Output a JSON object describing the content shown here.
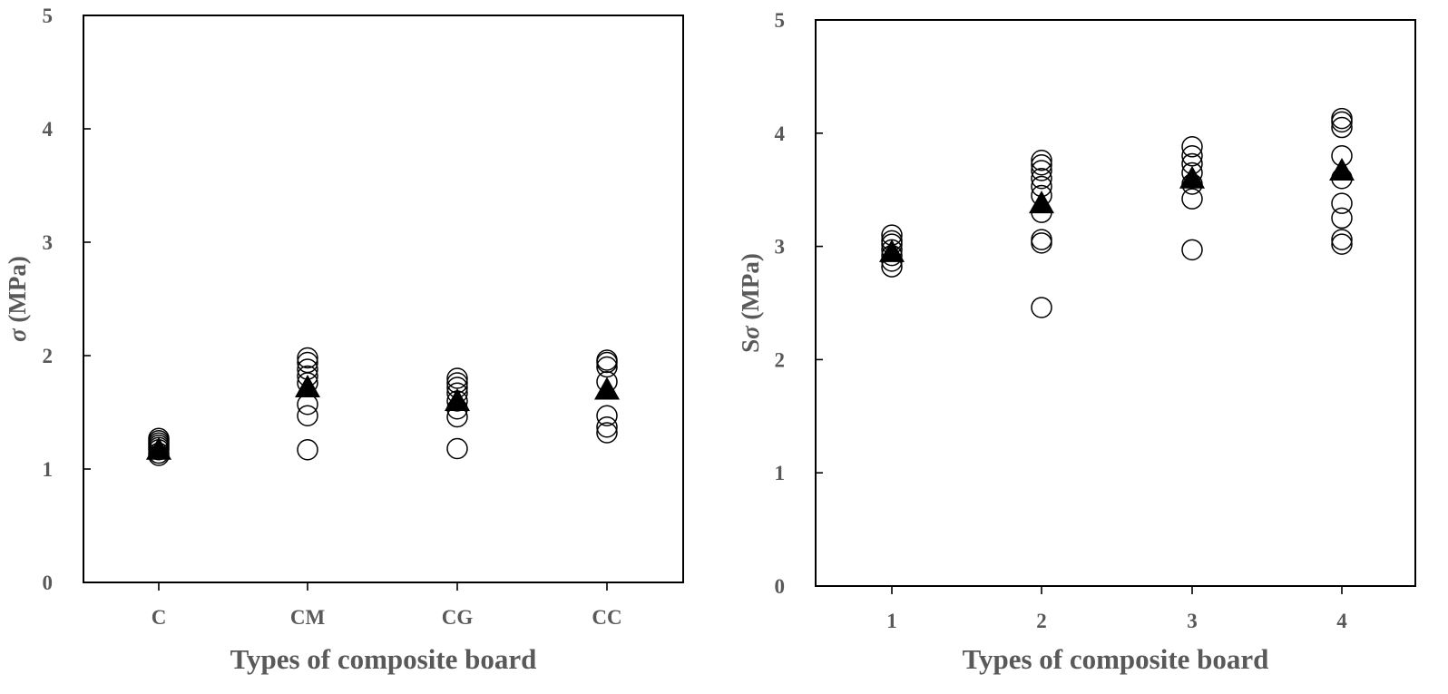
{
  "chart_data": [
    {
      "type": "scatter",
      "xlabel": "Types of composite board",
      "ylabel": {
        "symbol": "σ",
        "unit": " (MPa)"
      },
      "categories": [
        "C",
        "CM",
        "CG",
        "CC"
      ],
      "ylim": [
        0,
        5
      ],
      "yticks": [
        "0",
        "1",
        "2",
        "3",
        "4",
        "5"
      ],
      "grid": false,
      "series": [
        {
          "marker": "open-circle",
          "points": [
            [
              1.12,
              1.14,
              1.17,
              1.19,
              1.21,
              1.23,
              1.25,
              1.27
            ],
            [
              1.17,
              1.47,
              1.57,
              1.76,
              1.82,
              1.88,
              1.94,
              1.98
            ],
            [
              1.18,
              1.46,
              1.53,
              1.6,
              1.67,
              1.72,
              1.76,
              1.8
            ],
            [
              1.32,
              1.37,
              1.47,
              1.77,
              1.9,
              1.94,
              1.96
            ]
          ]
        },
        {
          "marker": "filled-triangle",
          "values": [
            1.17,
            1.72,
            1.6,
            1.7
          ]
        }
      ]
    },
    {
      "type": "scatter",
      "xlabel": "Types of composite board",
      "ylabel": {
        "prefix": "S",
        "symbol": "σ",
        "unit": " (MPa)"
      },
      "categories": [
        "1",
        "2",
        "3",
        "4"
      ],
      "ylim": [
        0,
        5
      ],
      "yticks": [
        "0",
        "1",
        "2",
        "3",
        "4",
        "5"
      ],
      "grid": false,
      "series": [
        {
          "marker": "open-circle",
          "points": [
            [
              2.82,
              2.87,
              2.92,
              2.97,
              3.02,
              3.05,
              3.1
            ],
            [
              2.46,
              3.03,
              3.06,
              3.3,
              3.45,
              3.53,
              3.6,
              3.67,
              3.72,
              3.76
            ],
            [
              2.97,
              3.42,
              3.55,
              3.65,
              3.73,
              3.8,
              3.88
            ],
            [
              3.02,
              3.06,
              3.25,
              3.38,
              3.6,
              3.8,
              4.05,
              4.1,
              4.13
            ]
          ]
        },
        {
          "marker": "filled-triangle",
          "values": [
            2.95,
            3.38,
            3.6,
            3.67
          ]
        }
      ]
    }
  ]
}
